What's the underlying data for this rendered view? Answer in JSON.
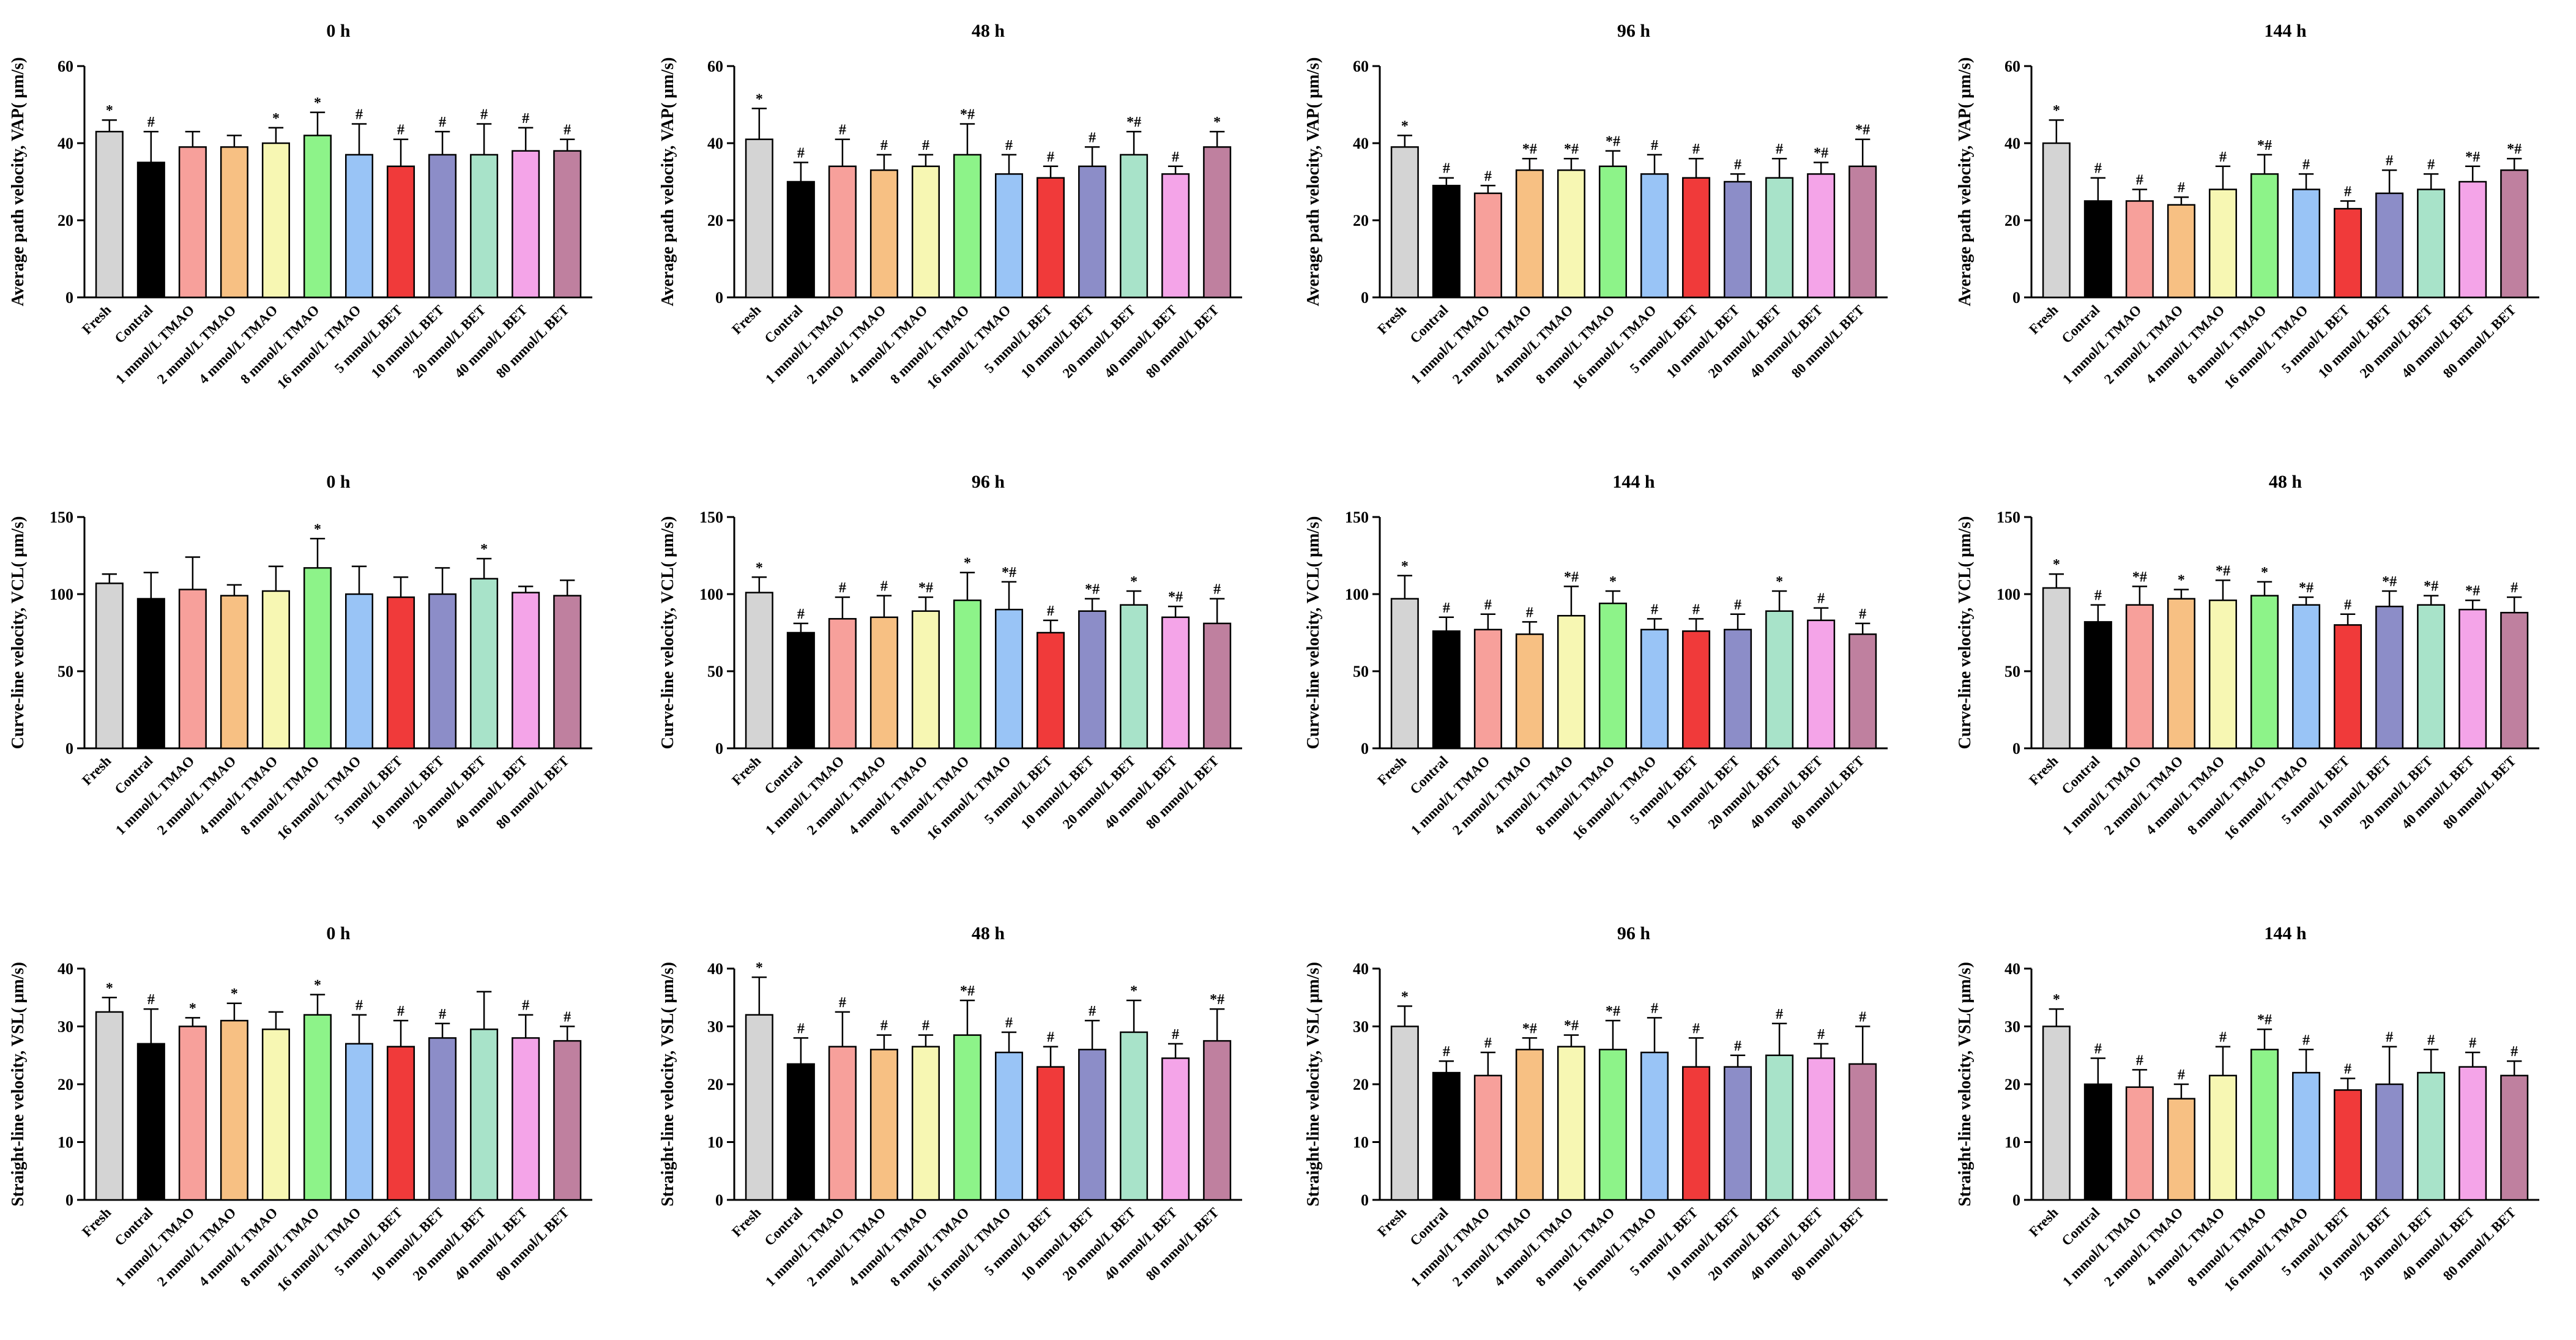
{
  "colors": {
    "bars": [
      "#d4d4d4",
      "#000000",
      "#f7a09b",
      "#f7c083",
      "#f7f7b3",
      "#8df389",
      "#99c4f6",
      "#f03a3a",
      "#8c8dc8",
      "#a8e3c9",
      "#f4a4e8",
      "#bf809f"
    ],
    "axis": "#000000"
  },
  "categories": [
    "Fresh",
    "Contral",
    "1 mmol/L TMAO",
    "2 mmol/L TMAO",
    "4 mmol/L TMAO",
    "8 mmol/L TMAO",
    "16 mmol/L TMAO",
    "5 mmol/L BET",
    "10 mmol/L BET",
    "20 mmol/L BET",
    "40 mmol/L BET",
    "80 mmol/L BET"
  ],
  "chart_data": [
    {
      "type": "bar",
      "title": "0 h",
      "ylabel": "Average path velocity, VAP( μm/s)",
      "ylim": [
        0,
        60
      ],
      "yticks": [
        0,
        20,
        40,
        60
      ],
      "values": [
        43,
        35,
        39,
        39,
        40,
        42,
        37,
        34,
        37,
        37,
        38,
        38
      ],
      "errors": [
        3,
        8,
        4,
        3,
        4,
        6,
        8,
        7,
        6,
        8,
        6,
        3
      ],
      "annotations": [
        "*",
        "#",
        "",
        "",
        "*",
        "*",
        "#",
        "#",
        "#",
        "#",
        "#",
        "#"
      ]
    },
    {
      "type": "bar",
      "title": "48 h",
      "ylabel": "Average path velocity, VAP( μm/s)",
      "ylim": [
        0,
        60
      ],
      "yticks": [
        0,
        20,
        40,
        60
      ],
      "values": [
        41,
        30,
        34,
        33,
        34,
        37,
        32,
        31,
        34,
        37,
        32,
        39
      ],
      "errors": [
        8,
        5,
        7,
        4,
        3,
        8,
        5,
        3,
        5,
        6,
        2,
        4
      ],
      "annotations": [
        "*",
        "#",
        "#",
        "#",
        "#",
        "*#",
        "#",
        "#",
        "#",
        "*#",
        "#",
        "*"
      ]
    },
    {
      "type": "bar",
      "title": "96 h",
      "ylabel": "Average path velocity, VAP( μm/s)",
      "ylim": [
        0,
        60
      ],
      "yticks": [
        0,
        20,
        40,
        60
      ],
      "values": [
        39,
        29,
        27,
        33,
        33,
        34,
        32,
        31,
        30,
        31,
        32,
        34
      ],
      "errors": [
        3,
        2,
        2,
        3,
        3,
        4,
        5,
        5,
        2,
        5,
        3,
        7
      ],
      "annotations": [
        "*",
        "#",
        "#",
        "*#",
        "*#",
        "*#",
        "#",
        "#",
        "#",
        "#",
        "*#",
        "*#"
      ]
    },
    {
      "type": "bar",
      "title": "144 h",
      "ylabel": "Average path velocity, VAP( μm/s)",
      "ylim": [
        0,
        60
      ],
      "yticks": [
        0,
        20,
        40,
        60
      ],
      "values": [
        40,
        25,
        25,
        24,
        28,
        32,
        28,
        23,
        27,
        28,
        30,
        33
      ],
      "errors": [
        6,
        6,
        3,
        2,
        6,
        5,
        4,
        2,
        6,
        4,
        4,
        3
      ],
      "annotations": [
        "*",
        "#",
        "#",
        "#",
        "#",
        "*#",
        "#",
        "#",
        "#",
        "#",
        "*#",
        "*#"
      ]
    },
    {
      "type": "bar",
      "title": "0 h",
      "ylabel": "Curve-line velocity, VCL( μm/s)",
      "ylim": [
        0,
        150
      ],
      "yticks": [
        0,
        50,
        100,
        150
      ],
      "values": [
        107,
        97,
        103,
        99,
        102,
        117,
        100,
        98,
        100,
        110,
        101,
        99
      ],
      "errors": [
        6,
        17,
        21,
        7,
        16,
        19,
        18,
        13,
        17,
        13,
        4,
        10
      ],
      "annotations": [
        "",
        "",
        "",
        "",
        "",
        "*",
        "",
        "",
        "",
        "*",
        "",
        ""
      ]
    },
    {
      "type": "bar",
      "title": "96 h",
      "ylabel": "Curve-line velocity, VCL( μm/s)",
      "ylim": [
        0,
        150
      ],
      "yticks": [
        0,
        50,
        100,
        150
      ],
      "values": [
        101,
        75,
        84,
        85,
        89,
        96,
        90,
        75,
        89,
        93,
        85,
        81
      ],
      "errors": [
        10,
        6,
        14,
        14,
        9,
        18,
        18,
        8,
        8,
        9,
        7,
        16
      ],
      "annotations": [
        "*",
        "#",
        "#",
        "#",
        "*#",
        "*",
        "*#",
        "#",
        "*#",
        "*",
        "*#",
        "#"
      ]
    },
    {
      "type": "bar",
      "title": "144 h",
      "ylabel": "Curve-line velocity, VCL( μm/s)",
      "ylim": [
        0,
        150
      ],
      "yticks": [
        0,
        50,
        100,
        150
      ],
      "values": [
        97,
        76,
        77,
        74,
        86,
        94,
        77,
        76,
        77,
        89,
        83,
        74
      ],
      "errors": [
        15,
        9,
        10,
        8,
        19,
        8,
        7,
        8,
        10,
        13,
        8,
        7
      ],
      "annotations": [
        "*",
        "#",
        "#",
        "#",
        "*#",
        "*",
        "#",
        "#",
        "#",
        "*",
        "#",
        "#"
      ]
    },
    {
      "type": "bar",
      "title": "48 h",
      "ylabel": "Curve-line velocity, VCL( μm/s)",
      "ylim": [
        0,
        150
      ],
      "yticks": [
        0,
        50,
        100,
        150
      ],
      "values": [
        104,
        82,
        93,
        97,
        96,
        99,
        93,
        80,
        92,
        93,
        90,
        88
      ],
      "errors": [
        9,
        11,
        12,
        6,
        13,
        9,
        5,
        7,
        10,
        6,
        6,
        10
      ],
      "annotations": [
        "*",
        "#",
        "*#",
        "*",
        "*#",
        "*",
        "*#",
        "#",
        "*#",
        "*#",
        "*#",
        "#"
      ]
    },
    {
      "type": "bar",
      "title": "0 h",
      "ylabel": "Straight-line velocity, VSL( μm/s)",
      "ylim": [
        0,
        40
      ],
      "yticks": [
        0,
        10,
        20,
        30,
        40
      ],
      "values": [
        32.5,
        27,
        30,
        31,
        29.5,
        32,
        27,
        26.5,
        28,
        29.5,
        28,
        27.5
      ],
      "errors": [
        2.5,
        6,
        1.5,
        3,
        3,
        3.5,
        5,
        4.5,
        2.5,
        6.5,
        4,
        2.5
      ],
      "annotations": [
        "*",
        "#",
        "*",
        "*",
        "",
        "*",
        "#",
        "#",
        "#",
        "",
        "#",
        "#"
      ]
    },
    {
      "type": "bar",
      "title": "48 h",
      "ylabel": "Straight-line velocity, VSL( μm/s)",
      "ylim": [
        0,
        40
      ],
      "yticks": [
        0,
        10,
        20,
        30,
        40
      ],
      "values": [
        32,
        23.5,
        26.5,
        26,
        26.5,
        28.5,
        25.5,
        23,
        26,
        29,
        24.5,
        27.5
      ],
      "errors": [
        6.5,
        4.5,
        6,
        2.5,
        2,
        6,
        3.5,
        3.5,
        5,
        5.5,
        2.5,
        5.5
      ],
      "annotations": [
        "*",
        "#",
        "#",
        "#",
        "#",
        "*#",
        "#",
        "#",
        "#",
        "*",
        "#",
        "*#"
      ]
    },
    {
      "type": "bar",
      "title": "96 h",
      "ylabel": "Straight-line velocity, VSL( μm/s)",
      "ylim": [
        0,
        40
      ],
      "yticks": [
        0,
        10,
        20,
        30,
        40
      ],
      "values": [
        30,
        22,
        21.5,
        26,
        26.5,
        26,
        25.5,
        23,
        23,
        25,
        24.5,
        23.5
      ],
      "errors": [
        3.5,
        2,
        4,
        2,
        2,
        5,
        6,
        5,
        2,
        5.5,
        2.5,
        6.5
      ],
      "annotations": [
        "*",
        "#",
        "#",
        "*#",
        "*#",
        "*#",
        "#",
        "#",
        "#",
        "#",
        "#",
        "#"
      ]
    },
    {
      "type": "bar",
      "title": "144 h",
      "ylabel": "Straight-line velocity, VSL( μm/s)",
      "ylim": [
        0,
        40
      ],
      "yticks": [
        0,
        10,
        20,
        30,
        40
      ],
      "values": [
        30,
        20,
        19.5,
        17.5,
        21.5,
        26,
        22,
        19,
        20,
        22,
        23,
        21.5
      ],
      "errors": [
        3,
        4.5,
        3,
        2.5,
        5,
        3.5,
        4,
        2,
        6.5,
        4,
        2.5,
        2.5
      ],
      "annotations": [
        "*",
        "#",
        "#",
        "#",
        "#",
        "*#",
        "#",
        "#",
        "#",
        "#",
        "#",
        "#"
      ]
    }
  ]
}
